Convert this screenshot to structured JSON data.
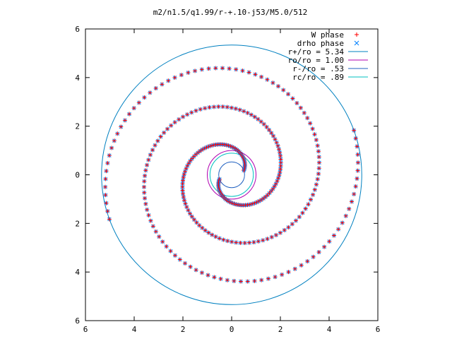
{
  "chart_data": {
    "type": "scatter",
    "title": "m2/n1.5/q1.99/r-+.10-j53/M5.0/512",
    "xlabel": "",
    "ylabel": "",
    "xlim": [
      -6,
      6
    ],
    "ylim": [
      -6,
      6
    ],
    "x_tick_values": [
      -6,
      -4,
      -2,
      0,
      2,
      4,
      6
    ],
    "x_tick_labels": [
      "6",
      "4",
      "2",
      "0",
      "2",
      "4",
      "6"
    ],
    "y_tick_values": [
      -6,
      -4,
      -2,
      0,
      2,
      4,
      6
    ],
    "y_tick_labels": [
      "6",
      "4",
      "2",
      "0",
      "2",
      "4",
      "6"
    ],
    "grid": false,
    "legend_position": "top-right",
    "spiral": {
      "arms": 2,
      "r_start": 0.53,
      "r_end": 5.34,
      "winding_start_deg": 200,
      "winding_total_deg": 540
    },
    "series": [
      {
        "name": "W phase",
        "kind": "points",
        "marker": "plus",
        "color": "#ff0000"
      },
      {
        "name": "drho phase",
        "kind": "points",
        "marker": "cross",
        "color": "#0080ff"
      },
      {
        "name": "r+/ro = 5.34",
        "kind": "circle",
        "radius": 5.34,
        "color": "#0080c0"
      },
      {
        "name": "ro/ro = 1.00",
        "kind": "circle",
        "radius": 1.0,
        "color": "#b000b0"
      },
      {
        "name": "r-/ro = .53",
        "kind": "circle",
        "radius": 0.53,
        "color": "#2060c0"
      },
      {
        "name": "rc/ro = .89",
        "kind": "circle",
        "radius": 0.89,
        "color": "#00c0c0"
      }
    ]
  }
}
